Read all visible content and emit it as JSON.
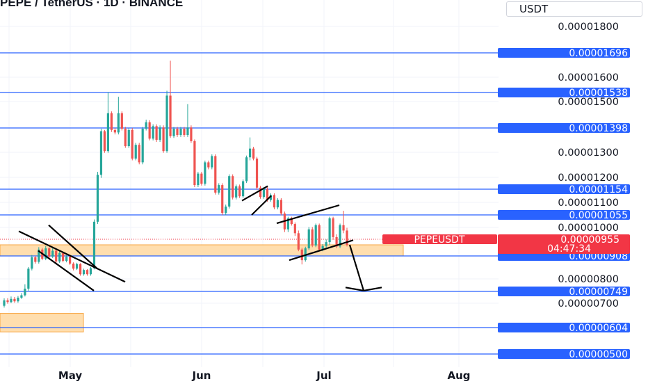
{
  "header": {
    "title": "PEPE / TetherUS · 1D · BINANCE",
    "currency": "USDT"
  },
  "colors": {
    "up": "#26a69a",
    "down": "#ef5350",
    "level_line": "#2962ff",
    "zone_fill": "#ffd8a0",
    "zone_border": "#f7a540",
    "current_price_bg": "#f23645",
    "grid": "#f0f3fa"
  },
  "chart_data": {
    "type": "candlestick",
    "title": "PEPE / TetherUS · 1D · BINANCE",
    "y_unit": "USDT",
    "y_ticks": [
      "0.00001800",
      "0.00001600",
      "0.00001500",
      "0.00001300",
      "0.00001200",
      "0.00001100",
      "0.00001000",
      "0.00000800",
      "0.00000700"
    ],
    "x_ticks": [
      "May",
      "Jun",
      "Jul",
      "Aug"
    ],
    "horizontal_levels": [
      "0.00001696",
      "0.00001538",
      "0.00001398",
      "0.00001154",
      "0.00001055",
      "0.00000908",
      "0.00000749",
      "0.00000604",
      "0.00000500"
    ],
    "current_price": {
      "symbol": "PEPEUSDT",
      "price": "0.00000955",
      "countdown": "04:47:34"
    },
    "zones": [
      {
        "low": 9.08e-06,
        "high": 9.55e-06
      },
      {
        "low": 5.87e-06,
        "high": 6.6e-06
      }
    ],
    "candles_open_close": [
      [
        6.9e-06,
        7.12e-06
      ],
      [
        7.12e-06,
        7.05e-06
      ],
      [
        7.05e-06,
        7.18e-06
      ],
      [
        7.18e-06,
        7.08e-06
      ],
      [
        7.08e-06,
        7.23e-06
      ],
      [
        7.23e-06,
        7.33e-06
      ],
      [
        7.33e-06,
        7.6e-06
      ],
      [
        7.6e-06,
        8.48e-06
      ],
      [
        8.48e-06,
        9.02e-06
      ],
      [
        9.02e-06,
        8.8e-06
      ],
      [
        8.8e-06,
        9.35e-06
      ],
      [
        9.35e-06,
        8.95e-06
      ],
      [
        8.95e-06,
        9.4e-06
      ],
      [
        9.4e-06,
        9.05e-06
      ],
      [
        9.05e-06,
        9.3e-06
      ],
      [
        9.3e-06,
        8.82e-06
      ],
      [
        8.82e-06,
        9.2e-06
      ],
      [
        9.2e-06,
        8.85e-06
      ],
      [
        8.85e-06,
        9.05e-06
      ],
      [
        9.05e-06,
        8.72e-06
      ],
      [
        8.72e-06,
        8.48e-06
      ],
      [
        8.48e-06,
        8.7e-06
      ],
      [
        8.7e-06,
        8.22e-06
      ],
      [
        8.22e-06,
        8.42e-06
      ],
      [
        8.42e-06,
        8.22e-06
      ],
      [
        8.22e-06,
        8.5e-06
      ],
      [
        8.5e-06,
        1.025e-05
      ],
      [
        1.025e-05,
        1.21e-05
      ],
      [
        1.21e-05,
        1.385e-05
      ],
      [
        1.385e-05,
        1.305e-05
      ],
      [
        1.305e-05,
        1.455e-05
      ],
      [
        1.455e-05,
        1.39e-05
      ],
      [
        1.39e-05,
        1.38e-05
      ],
      [
        1.38e-05,
        1.455e-05
      ],
      [
        1.455e-05,
        1.395e-05
      ],
      [
        1.395e-05,
        1.325e-05
      ],
      [
        1.325e-05,
        1.39e-05
      ],
      [
        1.39e-05,
        1.275e-05
      ],
      [
        1.275e-05,
        1.33e-05
      ],
      [
        1.33e-05,
        1.26e-05
      ],
      [
        1.26e-05,
        1.395e-05
      ],
      [
        1.395e-05,
        1.42e-05
      ],
      [
        1.42e-05,
        1.355e-05
      ],
      [
        1.355e-05,
        1.405e-05
      ],
      [
        1.405e-05,
        1.35e-05
      ],
      [
        1.35e-05,
        1.4e-05
      ],
      [
        1.4e-05,
        1.305e-05
      ],
      [
        1.305e-05,
        1.525e-05
      ],
      [
        1.525e-05,
        1.365e-05
      ],
      [
        1.365e-05,
        1.395e-05
      ],
      [
        1.395e-05,
        1.37e-05
      ],
      [
        1.37e-05,
        1.395e-05
      ],
      [
        1.395e-05,
        1.37e-05
      ],
      [
        1.37e-05,
        1.4e-05
      ],
      [
        1.4e-05,
        1.345e-05
      ],
      [
        1.345e-05,
        1.17e-05
      ],
      [
        1.17e-05,
        1.215e-05
      ],
      [
        1.215e-05,
        1.175e-05
      ],
      [
        1.175e-05,
        1.26e-05
      ],
      [
        1.26e-05,
        1.24e-05
      ],
      [
        1.24e-05,
        1.285e-05
      ],
      [
        1.285e-05,
        1.14e-05
      ],
      [
        1.14e-05,
        1.17e-05
      ],
      [
        1.17e-05,
        1.062e-05
      ],
      [
        1.062e-05,
        1.085e-05
      ],
      [
        1.085e-05,
        1.205e-05
      ],
      [
        1.205e-05,
        1.12e-05
      ],
      [
        1.12e-05,
        1.165e-05
      ],
      [
        1.165e-05,
        1.125e-05
      ],
      [
        1.125e-05,
        1.185e-05
      ],
      [
        1.185e-05,
        1.28e-05
      ],
      [
        1.28e-05,
        1.315e-05
      ],
      [
        1.315e-05,
        1.275e-05
      ],
      [
        1.275e-05,
        1.16e-05
      ],
      [
        1.16e-05,
        1.122e-05
      ],
      [
        1.122e-05,
        1.155e-05
      ],
      [
        1.155e-05,
        1.11e-05
      ],
      [
        1.11e-05,
        1.13e-05
      ],
      [
        1.13e-05,
        1.082e-05
      ],
      [
        1.082e-05,
        1.11e-05
      ],
      [
        1.11e-05,
        1.06e-05
      ],
      [
        1.06e-05,
        9.95e-06
      ],
      [
        9.95e-06,
        1.04e-05
      ],
      [
        1.04e-05,
        1.015e-05
      ],
      [
        1.015e-05,
        9.85e-06
      ],
      [
        9.85e-06,
        9.35e-06
      ],
      [
        9.35e-06,
        8.88e-06
      ],
      [
        8.88e-06,
        9.4e-06
      ],
      [
        9.4e-06,
        9.95e-06
      ],
      [
        9.95e-06,
        9.52e-06
      ],
      [
        9.52e-06,
        1.01e-05
      ],
      [
        1.01e-05,
        9.35e-06
      ],
      [
        9.35e-06,
        9.5e-06
      ],
      [
        9.5e-06,
        9.62e-06
      ],
      [
        9.62e-06,
        1.04e-05
      ],
      [
        1.04e-05,
        9.75e-06
      ],
      [
        9.75e-06,
        9.48e-06
      ],
      [
        9.48e-06,
        1.01e-05
      ],
      [
        1.01e-05,
        9.92e-06
      ],
      [
        9.92e-06,
        9.55e-06
      ]
    ],
    "candles_high_low": [
      [
        7.2e-06,
        6.83e-06
      ],
      [
        7.21e-06,
        6.98e-06
      ],
      [
        7.28e-06,
        7e-06
      ],
      [
        7.26e-06,
        7.02e-06
      ],
      [
        7.3e-06,
        7.02e-06
      ],
      [
        7.42e-06,
        7.18e-06
      ],
      [
        7.78e-06,
        7.28e-06
      ],
      [
        8.56e-06,
        7.52e-06
      ],
      [
        9.12e-06,
        8.4e-06
      ],
      [
        9.08e-06,
        8.72e-06
      ],
      [
        9.45e-06,
        8.72e-06
      ],
      [
        9.42e-06,
        8.88e-06
      ],
      [
        9.5e-06,
        8.88e-06
      ],
      [
        9.46e-06,
        8.98e-06
      ],
      [
        9.4e-06,
        8.98e-06
      ],
      [
        9.36e-06,
        8.75e-06
      ],
      [
        9.28e-06,
        8.75e-06
      ],
      [
        9.26e-06,
        8.78e-06
      ],
      [
        9.12e-06,
        8.78e-06
      ],
      [
        9.1e-06,
        8.66e-06
      ],
      [
        8.78e-06,
        8.4e-06
      ],
      [
        8.76e-06,
        8.42e-06
      ],
      [
        8.74e-06,
        8.15e-06
      ],
      [
        8.48e-06,
        8.15e-06
      ],
      [
        8.46e-06,
        8.15e-06
      ],
      [
        8.56e-06,
        8.15e-06
      ],
      [
        1.035e-05,
        8.45e-06
      ],
      [
        1.222e-05,
        1.015e-05
      ],
      [
        1.395e-05,
        1.198e-05
      ],
      [
        1.39e-05,
        1.298e-05
      ],
      [
        1.54e-05,
        1.298e-05
      ],
      [
        1.462e-05,
        1.382e-05
      ],
      [
        1.398e-05,
        1.372e-05
      ],
      [
        1.52e-05,
        1.372e-05
      ],
      [
        1.462e-05,
        1.388e-05
      ],
      [
        1.402e-05,
        1.318e-05
      ],
      [
        1.397e-05,
        1.318e-05
      ],
      [
        1.398e-05,
        1.268e-05
      ],
      [
        1.338e-05,
        1.268e-05
      ],
      [
        1.338e-05,
        1.252e-05
      ],
      [
        1.402e-05,
        1.252e-05
      ],
      [
        1.43e-05,
        1.388e-05
      ],
      [
        1.428e-05,
        1.348e-05
      ],
      [
        1.412e-05,
        1.348e-05
      ],
      [
        1.412e-05,
        1.342e-05
      ],
      [
        1.408e-05,
        1.342e-05
      ],
      [
        1.408e-05,
        1.298e-05
      ],
      [
        1.545e-05,
        1.298e-05
      ],
      [
        1.665e-05,
        1.358e-05
      ],
      [
        1.402e-05,
        1.358e-05
      ],
      [
        1.402e-05,
        1.362e-05
      ],
      [
        1.402e-05,
        1.362e-05
      ],
      [
        1.402e-05,
        1.362e-05
      ],
      [
        1.49e-05,
        1.362e-05
      ],
      [
        1.408e-05,
        1.338e-05
      ],
      [
        1.352e-05,
        1.162e-05
      ],
      [
        1.222e-05,
        1.162e-05
      ],
      [
        1.222e-05,
        1.168e-05
      ],
      [
        1.267e-05,
        1.168e-05
      ],
      [
        1.267e-05,
        1.232e-05
      ],
      [
        1.292e-05,
        1.232e-05
      ],
      [
        1.292e-05,
        1.132e-05
      ],
      [
        1.177e-05,
        1.132e-05
      ],
      [
        1.177e-05,
        1.055e-05
      ],
      [
        1.092e-05,
        1.055e-05
      ],
      [
        1.212e-05,
        1.078e-05
      ],
      [
        1.212e-05,
        1.112e-05
      ],
      [
        1.172e-05,
        1.112e-05
      ],
      [
        1.172e-05,
        1.118e-05
      ],
      [
        1.192e-05,
        1.118e-05
      ],
      [
        1.287e-05,
        1.178e-05
      ],
      [
        1.36e-05,
        1.268e-05
      ],
      [
        1.322e-05,
        1.268e-05
      ],
      [
        1.282e-05,
        1.152e-05
      ],
      [
        1.167e-05,
        1.115e-05
      ],
      [
        1.162e-05,
        1.115e-05
      ],
      [
        1.162e-05,
        1.103e-05
      ],
      [
        1.137e-05,
        1.103e-05
      ],
      [
        1.137e-05,
        1.075e-05
      ],
      [
        1.117e-05,
        1.075e-05
      ],
      [
        1.117e-05,
        1.053e-05
      ],
      [
        1.067e-05,
        9.88e-06
      ],
      [
        1.047e-05,
        9.88e-06
      ],
      [
        1.047e-05,
        1.008e-05
      ],
      [
        1.022e-05,
        9.78e-06
      ],
      [
        9.92e-06,
        9.28e-06
      ],
      [
        9.42e-06,
        8.68e-06
      ],
      [
        9.47e-06,
        8.81e-06
      ],
      [
        1.002e-05,
        9.33e-06
      ],
      [
        1.002e-05,
        9.45e-06
      ],
      [
        1.017e-05,
        9.45e-06
      ],
      [
        1.017e-05,
        9.28e-06
      ],
      [
        9.57e-06,
        9.28e-06
      ],
      [
        9.69e-06,
        9.43e-06
      ],
      [
        1.047e-05,
        9.55e-06
      ],
      [
        1.047e-05,
        9.68e-06
      ],
      [
        9.82e-06,
        9.41e-06
      ],
      [
        1.017e-05,
        9.41e-06
      ],
      [
        1.07e-05,
        9.85e-06
      ],
      [
        9.99e-06,
        9.48e-06
      ]
    ]
  }
}
